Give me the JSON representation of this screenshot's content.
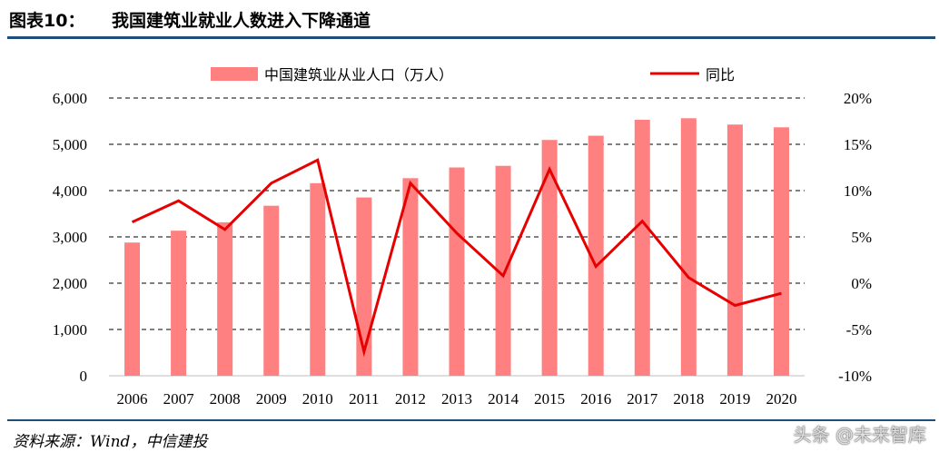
{
  "header": {
    "figure_label": "图表10：",
    "figure_title": "我国建筑业就业人数进入下降通道"
  },
  "footer": {
    "source": "资料来源：Wind，中信建投",
    "watermark": "头条 @未来智库"
  },
  "chart_data": {
    "type": "bar",
    "categories": [
      "2006",
      "2007",
      "2008",
      "2009",
      "2010",
      "2011",
      "2012",
      "2013",
      "2014",
      "2015",
      "2016",
      "2017",
      "2018",
      "2019",
      "2020"
    ],
    "series": [
      {
        "name": "中国建筑业从业人口（万人）",
        "type": "bar",
        "axis": "left",
        "color": "#ff8080",
        "values": [
          2878,
          3134,
          3315,
          3673,
          4160,
          3852,
          4268,
          4500,
          4535,
          5094,
          5185,
          5530,
          5563,
          5427,
          5367
        ]
      },
      {
        "name": "同比",
        "type": "line",
        "axis": "right",
        "color": "#e60000",
        "values": [
          6.6,
          8.9,
          5.8,
          10.8,
          13.3,
          -7.4,
          10.8,
          5.4,
          0.8,
          12.3,
          1.8,
          6.7,
          0.6,
          -2.4,
          -1.1
        ]
      }
    ],
    "y_left": {
      "min": 0,
      "max": 6000,
      "ticks": [
        "0",
        "1,000",
        "2,000",
        "3,000",
        "4,000",
        "5,000",
        "6,000"
      ]
    },
    "y_right": {
      "min": -10,
      "max": 20,
      "ticks": [
        "-10%",
        "-5%",
        "0%",
        "5%",
        "10%",
        "15%",
        "20%"
      ]
    },
    "grid": true,
    "legend_position": "top"
  }
}
